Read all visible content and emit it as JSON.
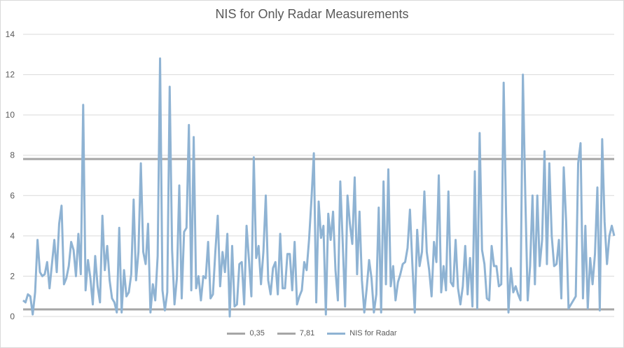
{
  "chart_data": {
    "type": "line",
    "title": "NIS for Only Radar Measurements",
    "xlabel": "",
    "ylabel": "",
    "ylim": [
      0,
      14
    ],
    "yticks": [
      "0",
      "2",
      "4",
      "6",
      "8",
      "10",
      "12",
      "14"
    ],
    "grid": true,
    "legend": "bottom",
    "series": [
      {
        "name": "0,35",
        "color": "#a6a6a6",
        "values": [
          0.35
        ]
      },
      {
        "name": "7,81",
        "color": "#a6a6a6",
        "values": [
          7.81
        ]
      },
      {
        "name": "NIS for Radar",
        "color": "#8fb3d3",
        "values": [
          0.8,
          0.7,
          1.1,
          1.0,
          0.1,
          1.2,
          3.8,
          2.2,
          2.0,
          2.1,
          2.7,
          1.4,
          2.6,
          3.8,
          2.2,
          4.6,
          5.5,
          1.6,
          1.9,
          2.5,
          3.7,
          3.3,
          2.0,
          4.1,
          2.1,
          10.5,
          1.3,
          2.8,
          1.9,
          0.6,
          3.0,
          1.5,
          0.7,
          5.0,
          2.3,
          3.5,
          1.8,
          0.9,
          0.7,
          0.2,
          4.4,
          0.2,
          2.3,
          1.0,
          1.2,
          2.1,
          5.8,
          1.8,
          3.2,
          7.6,
          3.2,
          2.6,
          4.6,
          0.2,
          1.6,
          0.8,
          3.0,
          12.8,
          1.3,
          0.3,
          1.2,
          11.4,
          3.3,
          0.6,
          1.9,
          6.5,
          0.9,
          4.2,
          4.4,
          9.5,
          1.3,
          8.9,
          1.4,
          2.0,
          0.8,
          2.0,
          1.9,
          3.7,
          0.9,
          1.1,
          3.2,
          5.0,
          1.5,
          3.2,
          2.2,
          4.1,
          0.0,
          3.5,
          0.5,
          0.6,
          2.6,
          2.7,
          0.6,
          4.5,
          2.8,
          1.0,
          7.9,
          2.9,
          3.5,
          1.6,
          3.2,
          6.0,
          1.8,
          1.1,
          2.4,
          2.7,
          1.1,
          4.1,
          1.4,
          1.4,
          3.1,
          3.1,
          1.3,
          3.7,
          0.6,
          1.0,
          1.3,
          2.7,
          2.3,
          3.8,
          5.8,
          8.1,
          0.7,
          5.7,
          3.9,
          4.5,
          0.1,
          5.1,
          3.8,
          5.2,
          2.3,
          0.8,
          6.7,
          3.7,
          0.5,
          6.0,
          4.6,
          3.6,
          6.9,
          2.1,
          5.2,
          1.8,
          0.2,
          1.4,
          2.8,
          1.9,
          0.2,
          1.1,
          5.4,
          0.2,
          6.7,
          1.6,
          7.3,
          1.5,
          2.5,
          0.8,
          1.7,
          2.1,
          2.6,
          2.7,
          3.4,
          5.3,
          2.6,
          0.2,
          4.3,
          2.5,
          3.2,
          6.2,
          3.2,
          2.3,
          1.0,
          3.7,
          2.7,
          7.0,
          1.2,
          2.5,
          1.3,
          6.2,
          1.7,
          1.5,
          3.8,
          1.4,
          0.6,
          1.5,
          3.5,
          1.1,
          2.9,
          0.5,
          7.2,
          0.4,
          9.1,
          3.3,
          2.6,
          0.9,
          0.8,
          3.5,
          2.5,
          2.5,
          1.5,
          1.6,
          11.6,
          5.1,
          0.2,
          2.4,
          1.2,
          1.5,
          1.1,
          0.8,
          12.0,
          6.0,
          0.8,
          2.5,
          6.0,
          1.6,
          6.0,
          2.5,
          3.8,
          8.2,
          2.6,
          7.6,
          4.0,
          2.5,
          2.6,
          3.8,
          0.9,
          7.4,
          4.7,
          0.4,
          0.6,
          0.8,
          1.0,
          7.6,
          8.6,
          0.9,
          4.5,
          0.4,
          2.9,
          1.6,
          3.1,
          6.4,
          0.3,
          8.8,
          4.7,
          2.6,
          4.0,
          4.5,
          4.0
        ]
      }
    ]
  }
}
